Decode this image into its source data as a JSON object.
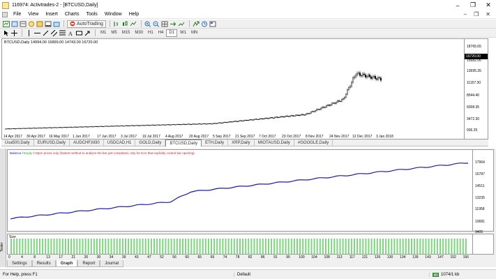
{
  "window": {
    "title": "116974: Activtrades-2 - [BTCUSD,Daily]",
    "minimize": "–",
    "maximize": "❐",
    "close": "✕"
  },
  "menu": {
    "items": [
      "File",
      "View",
      "Insert",
      "Charts",
      "Tools",
      "Window",
      "Help"
    ],
    "mdi_min": "–",
    "mdi_restore": "❐",
    "mdi_close": "✕"
  },
  "toolbar": {
    "autotrading_label": "AutoTrading",
    "timeframes": [
      "M1",
      "M5",
      "M15",
      "M30",
      "H1",
      "H4",
      "D1",
      "W1",
      "MN"
    ],
    "active_timeframe": "D1"
  },
  "chart": {
    "header": "BTCUSD,Daily  14994.00 16899.00 14743.00 16720.00",
    "y_axis": [
      "18765.65",
      "16720.00",
      "15682.06",
      "13695.35",
      "11157.30",
      "8544.40",
      "6008.35",
      "3472.30",
      "936.25"
    ],
    "current_price": "16720.00",
    "x_axis": [
      "14 Apr 2017",
      "30 Apr 2017",
      "16 May 2017",
      "1 Jun 2017",
      "17 Jun 2017",
      "3 Jul 2017",
      "19 Jul 2017",
      "4 Aug 2017",
      "20 Aug 2017",
      "5 Sep 2017",
      "21 Sep 2017",
      "7 Oct 2017",
      "23 Oct 2017",
      "8 Nov 2017",
      "24 Nov 2017",
      "12 Dec 2017",
      "3 Jan 2018"
    ],
    "colors": {
      "up": "#000000",
      "down": "#000000"
    }
  },
  "chart_tabs": {
    "items": [
      "Usa500,Daily",
      "EURUSD,Daily",
      "AUDCHF,M30",
      "USDCAD,H1",
      "GOLD,Daily",
      "BTCUSD,Daily",
      "ETH,Daily",
      "XRP,Daily",
      "MIOTAUSD,Daily",
      "#GOOGLE,Daily"
    ],
    "active": "BTCUSD,Daily"
  },
  "tester": {
    "side_label": "Tester",
    "legend_balance": "Balance",
    "legend_equity": "Equity",
    "legend_note": "Open prices only (fastest method to analyze the bar just completed, only for EAs that explicitly control bar opening)",
    "y_axis": [
      "17964",
      "15787",
      "14511",
      "13235",
      "11958",
      "10681",
      "9405"
    ],
    "size_label": "Size",
    "x_axis": [
      "0",
      "4",
      "8",
      "13",
      "17",
      "21",
      "26",
      "30",
      "34",
      "39",
      "43",
      "47",
      "52",
      "56",
      "60",
      "65",
      "69",
      "74",
      "78",
      "82",
      "86",
      "91",
      "95",
      "100",
      "104",
      "108",
      "113",
      "117",
      "121",
      "126",
      "130",
      "134",
      "139",
      "143",
      "147",
      "152",
      "156"
    ],
    "tabs": [
      "Settings",
      "Results",
      "Graph",
      "Report",
      "Journal"
    ],
    "active_tab": "Graph",
    "colors": {
      "balance": "#1a1aa8",
      "size_bars": "#7fd47f"
    }
  },
  "status": {
    "help": "For Help, press F1",
    "profile": "Default",
    "connection": "1074/1 kb"
  }
}
